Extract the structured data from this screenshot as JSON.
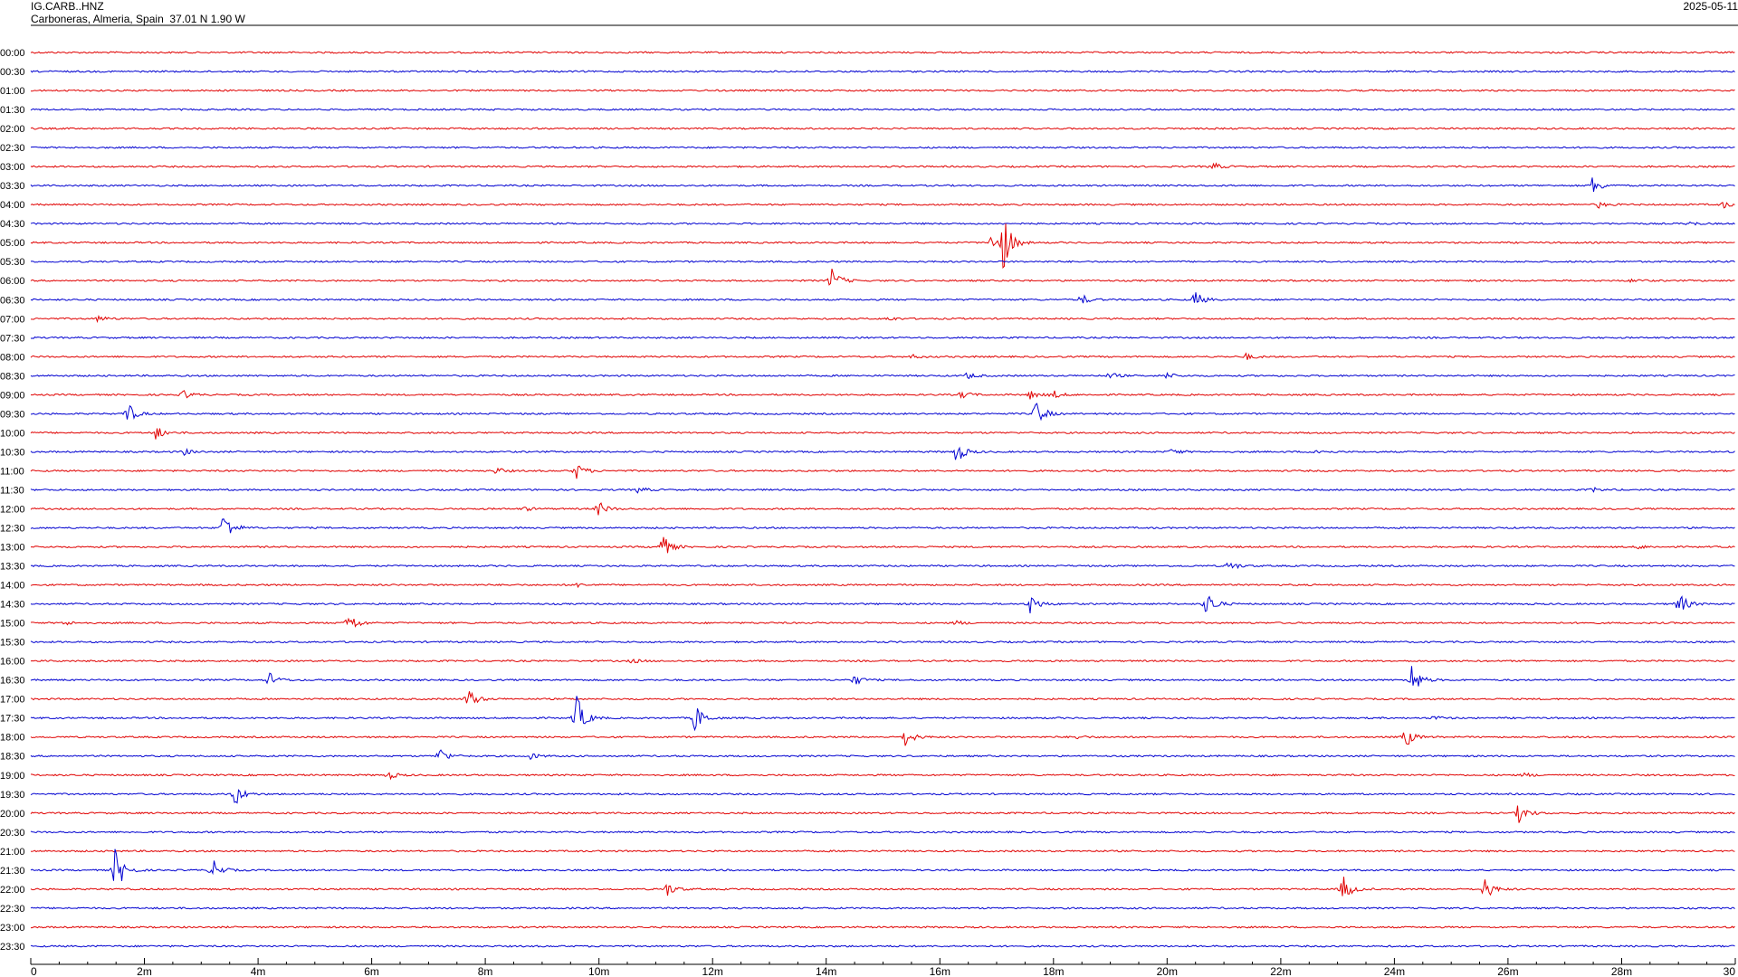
{
  "header": {
    "station": "IG.CARB..HNZ",
    "location": "Carboneras, Almeria, Spain  37.01 N 1.90 W",
    "date": "2025-05-11"
  },
  "colors": {
    "odd": "#e00000",
    "even": "#0000d0"
  },
  "chart_data": {
    "type": "line",
    "title": "",
    "xlabel": "",
    "ylabel": "",
    "xlim": [
      0,
      30
    ],
    "x_unit": "minutes",
    "grid": false,
    "rows": [
      "00:00",
      "00:30",
      "01:00",
      "01:30",
      "02:00",
      "02:30",
      "03:00",
      "03:30",
      "04:00",
      "04:30",
      "05:00",
      "05:30",
      "06:00",
      "06:30",
      "07:00",
      "07:30",
      "08:00",
      "08:30",
      "09:00",
      "09:30",
      "10:00",
      "10:30",
      "11:00",
      "11:30",
      "12:00",
      "12:30",
      "13:00",
      "13:30",
      "14:00",
      "14:30",
      "15:00",
      "15:30",
      "16:00",
      "16:30",
      "17:00",
      "17:30",
      "18:00",
      "18:30",
      "19:00",
      "19:30",
      "20:00",
      "20:30",
      "21:00",
      "21:30",
      "22:00",
      "22:30",
      "23:00",
      "23:30"
    ],
    "x_ticks": [
      {
        "v": 0,
        "label": "0"
      },
      {
        "v": 2,
        "label": "2m"
      },
      {
        "v": 4,
        "label": "4m"
      },
      {
        "v": 6,
        "label": "6m"
      },
      {
        "v": 8,
        "label": "8m"
      },
      {
        "v": 10,
        "label": "10m"
      },
      {
        "v": 12,
        "label": "12m"
      },
      {
        "v": 14,
        "label": "14m"
      },
      {
        "v": 16,
        "label": "16m"
      },
      {
        "v": 18,
        "label": "18m"
      },
      {
        "v": 20,
        "label": "20m"
      },
      {
        "v": 22,
        "label": "22m"
      },
      {
        "v": 24,
        "label": "24m"
      },
      {
        "v": 26,
        "label": "26m"
      },
      {
        "v": 28,
        "label": "28m"
      },
      {
        "v": 30,
        "label": "30"
      }
    ],
    "events": [
      {
        "row": 6,
        "t": 20.8,
        "amp": 0.2
      },
      {
        "row": 7,
        "t": 27.5,
        "amp": 0.45
      },
      {
        "row": 8,
        "t": 27.6,
        "amp": 0.15
      },
      {
        "row": 8,
        "t": 29.8,
        "amp": 0.15
      },
      {
        "row": 9,
        "t": 29.2,
        "amp": 0.1
      },
      {
        "row": 10,
        "t": 16.9,
        "amp": 0.3
      },
      {
        "row": 10,
        "t": 17.1,
        "amp": 1.6
      },
      {
        "row": 12,
        "t": 14.1,
        "amp": 0.6
      },
      {
        "row": 12,
        "t": 28.2,
        "amp": 0.1
      },
      {
        "row": 13,
        "t": 18.5,
        "amp": 0.25
      },
      {
        "row": 13,
        "t": 20.5,
        "amp": 0.4
      },
      {
        "row": 14,
        "t": 1.2,
        "amp": 0.15
      },
      {
        "row": 14,
        "t": 15.1,
        "amp": 0.1
      },
      {
        "row": 16,
        "t": 21.4,
        "amp": 0.15
      },
      {
        "row": 16,
        "t": 15.5,
        "amp": 0.1
      },
      {
        "row": 17,
        "t": 16.5,
        "amp": 0.15
      },
      {
        "row": 17,
        "t": 19.0,
        "amp": 0.15
      },
      {
        "row": 17,
        "t": 20.0,
        "amp": 0.15
      },
      {
        "row": 18,
        "t": 2.7,
        "amp": 0.2
      },
      {
        "row": 18,
        "t": 16.4,
        "amp": 0.2
      },
      {
        "row": 18,
        "t": 17.6,
        "amp": 0.2
      },
      {
        "row": 18,
        "t": 18.0,
        "amp": 0.2
      },
      {
        "row": 19,
        "t": 1.7,
        "amp": 0.55
      },
      {
        "row": 19,
        "t": 17.7,
        "amp": 0.7
      },
      {
        "row": 20,
        "t": 2.2,
        "amp": 0.35
      },
      {
        "row": 21,
        "t": 2.7,
        "amp": 0.15
      },
      {
        "row": 21,
        "t": 16.3,
        "amp": 0.55
      },
      {
        "row": 21,
        "t": 20.1,
        "amp": 0.15
      },
      {
        "row": 21,
        "t": 22.6,
        "amp": 0.15
      },
      {
        "row": 22,
        "t": 9.6,
        "amp": 0.4
      },
      {
        "row": 22,
        "t": 8.2,
        "amp": 0.15
      },
      {
        "row": 23,
        "t": 10.7,
        "amp": 0.15
      },
      {
        "row": 23,
        "t": 27.5,
        "amp": 0.1
      },
      {
        "row": 24,
        "t": 10.0,
        "amp": 0.35
      },
      {
        "row": 24,
        "t": 8.7,
        "amp": 0.1
      },
      {
        "row": 25,
        "t": 3.4,
        "amp": 0.8
      },
      {
        "row": 26,
        "t": 11.1,
        "amp": 0.7
      },
      {
        "row": 26,
        "t": 28.3,
        "amp": 0.1
      },
      {
        "row": 27,
        "t": 21.1,
        "amp": 0.25
      },
      {
        "row": 28,
        "t": 9.6,
        "amp": 0.1
      },
      {
        "row": 29,
        "t": 17.6,
        "amp": 0.5
      },
      {
        "row": 29,
        "t": 20.7,
        "amp": 0.7
      },
      {
        "row": 29,
        "t": 29.0,
        "amp": 0.6
      },
      {
        "row": 30,
        "t": 5.6,
        "amp": 0.55
      },
      {
        "row": 30,
        "t": 0.6,
        "amp": 0.1
      },
      {
        "row": 30,
        "t": 16.3,
        "amp": 0.1
      },
      {
        "row": 32,
        "t": 10.6,
        "amp": 0.1
      },
      {
        "row": 33,
        "t": 4.2,
        "amp": 0.35
      },
      {
        "row": 33,
        "t": 14.5,
        "amp": 0.25
      },
      {
        "row": 33,
        "t": 24.3,
        "amp": 0.9
      },
      {
        "row": 34,
        "t": 7.7,
        "amp": 0.55
      },
      {
        "row": 35,
        "t": 9.6,
        "amp": 1.2
      },
      {
        "row": 35,
        "t": 11.7,
        "amp": 0.7
      },
      {
        "row": 35,
        "t": 24.7,
        "amp": 0.1
      },
      {
        "row": 36,
        "t": 15.4,
        "amp": 0.45
      },
      {
        "row": 36,
        "t": 24.2,
        "amp": 0.5
      },
      {
        "row": 36,
        "t": 18.4,
        "amp": 0.1
      },
      {
        "row": 37,
        "t": 7.2,
        "amp": 0.4
      },
      {
        "row": 37,
        "t": 8.8,
        "amp": 0.15
      },
      {
        "row": 38,
        "t": 6.3,
        "amp": 0.2
      },
      {
        "row": 38,
        "t": 26.3,
        "amp": 0.1
      },
      {
        "row": 39,
        "t": 3.6,
        "amp": 0.55
      },
      {
        "row": 40,
        "t": 26.2,
        "amp": 0.5
      },
      {
        "row": 43,
        "t": 1.5,
        "amp": 1.2
      },
      {
        "row": 43,
        "t": 3.2,
        "amp": 0.55
      },
      {
        "row": 44,
        "t": 11.2,
        "amp": 0.35
      },
      {
        "row": 44,
        "t": 23.1,
        "amp": 0.65
      },
      {
        "row": 44,
        "t": 25.6,
        "amp": 0.55
      }
    ]
  }
}
